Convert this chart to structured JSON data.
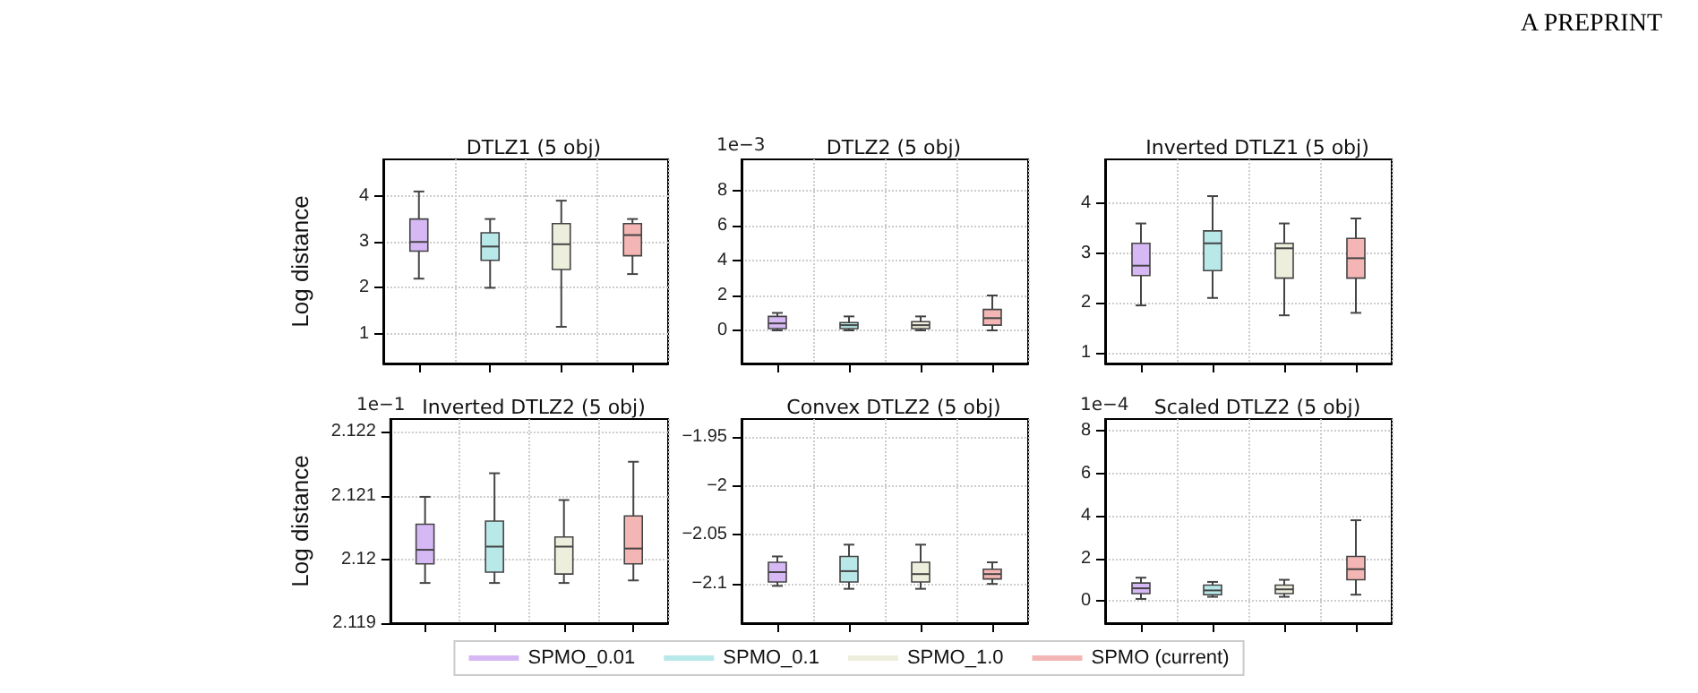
{
  "chart_data": [
    {
      "type": "box",
      "title": "DTLZ1 (5 obj)",
      "ylabel": "Log distance",
      "categories": [
        null,
        null,
        null,
        null
      ],
      "ylim": [
        0.35,
        4.8
      ],
      "yticks": [
        1,
        2,
        3,
        4
      ],
      "grid": true,
      "tick_labels": "y",
      "series": [
        {
          "color": "#d6b8f5",
          "boxes": [
            {
              "low": 2.2,
              "q1": 2.8,
              "median": 3.0,
              "q3": 3.5,
              "high": 4.1
            },
            null,
            null,
            null
          ]
        },
        {
          "color": "#b8e8e8",
          "boxes": [
            null,
            {
              "low": 2.0,
              "q1": 2.6,
              "median": 2.9,
              "q3": 3.2,
              "high": 3.5
            },
            null,
            null
          ]
        },
        {
          "color": "#eeeedc",
          "boxes": [
            null,
            null,
            {
              "low": 1.15,
              "q1": 2.4,
              "median": 2.95,
              "q3": 3.4,
              "high": 3.9
            },
            null
          ]
        },
        {
          "color": "#f4b6b4",
          "boxes": [
            null,
            null,
            null,
            {
              "low": 2.3,
              "q1": 2.7,
              "median": 3.15,
              "q3": 3.4,
              "high": 3.5
            }
          ]
        }
      ]
    },
    {
      "type": "box",
      "title": "DTLZ2 (5 obj)",
      "categories": [
        null,
        null,
        null,
        null
      ],
      "ylim": [
        -1.9,
        9.8
      ],
      "yticks": [
        0,
        2,
        4,
        6,
        8
      ],
      "grid": true,
      "tick_labels": "y",
      "annotations": [
        "1e−3"
      ],
      "series": [
        {
          "color": "#d6b8f5",
          "boxes": [
            {
              "low": 0.0,
              "q1": 0.1,
              "median": 0.4,
              "q3": 0.8,
              "high": 1.0
            },
            null,
            null,
            null
          ]
        },
        {
          "color": "#b8e8e8",
          "boxes": [
            null,
            {
              "low": 0.0,
              "q1": 0.1,
              "median": 0.3,
              "q3": 0.45,
              "high": 0.8
            },
            null,
            null
          ]
        },
        {
          "color": "#eeeedc",
          "boxes": [
            null,
            null,
            {
              "low": 0.0,
              "q1": 0.1,
              "median": 0.3,
              "q3": 0.5,
              "high": 0.8
            },
            null
          ]
        },
        {
          "color": "#f4b6b4",
          "boxes": [
            null,
            null,
            null,
            {
              "low": 0.0,
              "q1": 0.3,
              "median": 0.7,
              "q3": 1.2,
              "high": 2.0
            }
          ]
        }
      ]
    },
    {
      "type": "box",
      "title": "Inverted DTLZ1 (5 obj)",
      "categories": [
        null,
        null,
        null,
        null
      ],
      "ylim": [
        0.78,
        4.89
      ],
      "yticks": [
        1,
        2,
        3,
        4
      ],
      "grid": true,
      "tick_labels": "y",
      "annotations": [
        "A PREPRINT"
      ],
      "series": [
        {
          "color": "#d6b8f5",
          "boxes": [
            {
              "low": 1.95,
              "q1": 2.55,
              "median": 2.75,
              "q3": 3.2,
              "high": 3.6
            },
            null,
            null,
            null
          ]
        },
        {
          "color": "#b8e8e8",
          "boxes": [
            null,
            {
              "low": 2.1,
              "q1": 2.65,
              "median": 3.2,
              "q3": 3.45,
              "high": 4.15
            },
            null,
            null
          ]
        },
        {
          "color": "#eeeedc",
          "boxes": [
            null,
            null,
            {
              "low": 1.75,
              "q1": 2.5,
              "median": 3.1,
              "q3": 3.2,
              "high": 3.6
            },
            null
          ]
        },
        {
          "color": "#f4b6b4",
          "boxes": [
            null,
            null,
            null,
            {
              "low": 1.8,
              "q1": 2.5,
              "median": 2.9,
              "q3": 3.3,
              "high": 3.7
            }
          ]
        }
      ]
    },
    {
      "type": "box",
      "title": "Inverted DTLZ2 (5 obj)",
      "ylabel": "Log distance",
      "categories": [
        null,
        null,
        null,
        null
      ],
      "ylim": [
        2.119,
        2.1222
      ],
      "yticks": [
        2.119,
        2.12,
        2.121,
        2.122
      ],
      "grid": true,
      "tick_labels": "y",
      "annotations": [
        "1e−1"
      ],
      "series": [
        {
          "color": "#d6b8f5",
          "boxes": [
            {
              "low": 2.11963,
              "q1": 2.11993,
              "median": 2.12015,
              "q3": 2.12055,
              "high": 2.12098
            },
            null,
            null,
            null
          ]
        },
        {
          "color": "#b8e8e8",
          "boxes": [
            null,
            {
              "low": 2.11963,
              "q1": 2.1198,
              "median": 2.1202,
              "q3": 2.1206,
              "high": 2.12135
            },
            null,
            null
          ]
        },
        {
          "color": "#eeeedc",
          "boxes": [
            null,
            null,
            {
              "low": 2.11963,
              "q1": 2.11977,
              "median": 2.1202,
              "q3": 2.12035,
              "high": 2.12093
            },
            null
          ]
        },
        {
          "color": "#f4b6b4",
          "boxes": [
            null,
            null,
            null,
            {
              "low": 2.11967,
              "q1": 2.11993,
              "median": 2.12017,
              "q3": 2.12068,
              "high": 2.12153
            }
          ]
        }
      ]
    },
    {
      "type": "box",
      "title": "Convex DTLZ2 (5 obj)",
      "categories": [
        null,
        null,
        null,
        null
      ],
      "ylim": [
        -2.14,
        -1.932
      ],
      "yticks": [
        -2.1,
        -2.05,
        -2.0,
        -1.95
      ],
      "grid": true,
      "tick_labels": "y",
      "legend": "bottom",
      "series": [
        {
          "name": "SPMO_0.01",
          "color": "#d6b8f5",
          "boxes": [
            {
              "low": -2.102,
              "q1": -2.098,
              "median": -2.088,
              "q3": -2.078,
              "high": -2.072
            },
            null,
            null,
            null
          ]
        },
        {
          "name": "SPMO_0.1",
          "color": "#b8e8e8",
          "boxes": [
            null,
            {
              "low": -2.105,
              "q1": -2.098,
              "median": -2.087,
              "q3": -2.072,
              "high": -2.06
            },
            null,
            null
          ]
        },
        {
          "name": "SPMO_1.0",
          "color": "#eeeedc",
          "boxes": [
            null,
            null,
            {
              "low": -2.105,
              "q1": -2.098,
              "median": -2.09,
              "q3": -2.078,
              "high": -2.06
            },
            null
          ]
        },
        {
          "name": "SPMO (current)",
          "color": "#f4b6b4",
          "boxes": [
            null,
            null,
            null,
            {
              "low": -2.1,
              "q1": -2.095,
              "median": -2.09,
              "q3": -2.085,
              "high": -2.078
            }
          ]
        }
      ]
    },
    {
      "type": "box",
      "title": "Scaled DTLZ2 (5 obj)",
      "categories": [
        null,
        null,
        null,
        null
      ],
      "ylim": [
        -1.04,
        8.56
      ],
      "yticks": [
        0,
        2,
        4,
        6,
        8
      ],
      "grid": true,
      "tick_labels": "y",
      "annotations": [
        "1e−4"
      ],
      "series": [
        {
          "color": "#d6b8f5",
          "boxes": [
            {
              "low": 0.1,
              "q1": 0.35,
              "median": 0.6,
              "q3": 0.85,
              "high": 1.1
            },
            null,
            null,
            null
          ]
        },
        {
          "color": "#b8e8e8",
          "boxes": [
            null,
            {
              "low": 0.2,
              "q1": 0.3,
              "median": 0.5,
              "q3": 0.75,
              "high": 0.9
            },
            null,
            null
          ]
        },
        {
          "color": "#eeeedc",
          "boxes": [
            null,
            null,
            {
              "low": 0.2,
              "q1": 0.35,
              "median": 0.55,
              "q3": 0.75,
              "high": 1.0
            },
            null
          ]
        },
        {
          "color": "#f4b6b4",
          "boxes": [
            null,
            null,
            null,
            {
              "low": 0.3,
              "q1": 1.0,
              "median": 1.5,
              "q3": 2.1,
              "high": 3.8
            }
          ]
        }
      ]
    }
  ]
}
